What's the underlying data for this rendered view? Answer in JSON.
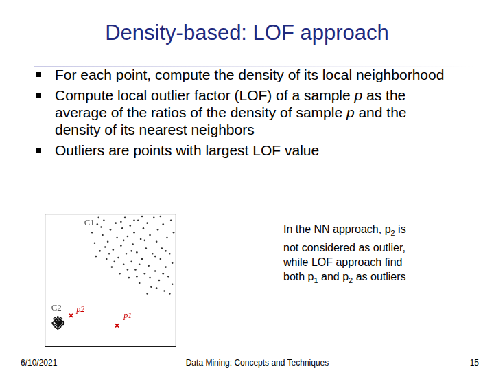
{
  "slide": {
    "title": "Density-based: LOF approach",
    "bullets": [
      [
        "For each point, compute the density of its local neighborhood"
      ],
      [
        "Compute local outlier factor (LOF) of a sample ",
        {
          "italic": "p"
        },
        " as the average of the ratios of the density of sample ",
        {
          "italic": "p"
        },
        " and the density of its nearest neighbors"
      ],
      [
        "Outliers are points with largest LOF value"
      ]
    ],
    "note": [
      [
        "In the NN approach, p",
        {
          "sub": "2"
        },
        " is"
      ],
      [
        "not considered as outlier,"
      ],
      [
        "while LOF approach find"
      ],
      [
        "both p",
        {
          "sub": "1"
        },
        " and p",
        {
          "sub": "2"
        },
        " as outliers"
      ]
    ],
    "footer": {
      "date": "6/10/2021",
      "source": "Data Mining: Concepts and Techniques",
      "page": "15"
    }
  },
  "chart_data": {
    "type": "scatter",
    "xlim": [
      0,
      100
    ],
    "ylim": [
      0,
      100
    ],
    "tick_labels": false,
    "grid": false,
    "series": [
      {
        "color": "#333333",
        "marker": "circle",
        "values": [
          [
            36,
            86
          ],
          [
            38,
            78
          ],
          [
            40,
            92
          ],
          [
            42,
            72
          ],
          [
            44,
            84
          ],
          [
            45,
            95
          ],
          [
            47,
            66
          ],
          [
            48,
            79
          ],
          [
            50,
            88
          ],
          [
            51,
            60
          ],
          [
            52,
            73
          ],
          [
            54,
            93
          ],
          [
            55,
            82
          ],
          [
            56,
            67
          ],
          [
            57,
            55
          ],
          [
            58,
            76
          ],
          [
            59,
            89
          ],
          [
            60,
            62
          ],
          [
            61,
            97
          ],
          [
            62,
            70
          ],
          [
            63,
            83
          ],
          [
            64,
            52
          ],
          [
            65,
            91
          ],
          [
            66,
            64
          ],
          [
            67,
            77
          ],
          [
            68,
            86
          ],
          [
            69,
            58
          ],
          [
            70,
            71
          ],
          [
            71,
            95
          ],
          [
            72,
            48
          ],
          [
            73,
            81
          ],
          [
            74,
            66
          ],
          [
            75,
            89
          ],
          [
            76,
            55
          ],
          [
            77,
            74
          ],
          [
            78,
            93
          ],
          [
            79,
            61
          ],
          [
            80,
            84
          ],
          [
            81,
            45
          ],
          [
            82,
            70
          ],
          [
            83,
            97
          ],
          [
            84,
            57
          ],
          [
            85,
            79
          ],
          [
            86,
            88
          ],
          [
            87,
            50
          ],
          [
            88,
            66
          ],
          [
            89,
            74
          ],
          [
            90,
            92
          ],
          [
            91,
            42
          ],
          [
            92,
            60
          ],
          [
            93,
            82
          ],
          [
            94,
            53
          ],
          [
            95,
            70
          ],
          [
            96,
            95
          ],
          [
            97,
            47
          ],
          [
            97,
            63
          ],
          [
            98,
            86
          ],
          [
            39,
            68
          ],
          [
            43,
            90
          ],
          [
            46,
            75
          ],
          [
            53,
            64
          ],
          [
            58,
            94
          ],
          [
            63,
            58
          ],
          [
            68,
            95
          ],
          [
            72,
            62
          ],
          [
            76,
            80
          ],
          [
            80,
            52
          ],
          [
            84,
            68
          ],
          [
            88,
            98
          ],
          [
            92,
            72
          ],
          [
            95,
            40
          ],
          [
            85,
            44
          ],
          [
            78,
            40
          ],
          [
            70,
            53
          ],
          [
            60,
            80
          ],
          [
            49,
            70
          ],
          [
            41,
            97
          ],
          [
            66,
            72
          ],
          [
            74,
            98
          ],
          [
            90,
            55
          ]
        ]
      },
      {
        "color": "#111111",
        "marker": "circle",
        "values": [
          [
            6,
            18
          ],
          [
            7,
            16
          ],
          [
            7,
            19
          ],
          [
            7,
            21
          ],
          [
            8,
            15
          ],
          [
            8,
            17
          ],
          [
            8,
            19
          ],
          [
            8,
            20
          ],
          [
            8,
            22
          ],
          [
            9,
            14
          ],
          [
            9,
            16
          ],
          [
            9,
            18
          ],
          [
            9,
            19
          ],
          [
            9,
            21
          ],
          [
            10,
            15
          ],
          [
            10,
            16
          ],
          [
            10,
            17
          ],
          [
            10,
            18
          ],
          [
            10,
            19
          ],
          [
            10,
            20
          ],
          [
            10,
            22
          ],
          [
            11,
            14
          ],
          [
            11,
            16
          ],
          [
            11,
            17
          ],
          [
            11,
            18
          ],
          [
            11,
            19
          ],
          [
            11,
            21
          ],
          [
            12,
            15
          ],
          [
            12,
            17
          ],
          [
            12,
            18
          ],
          [
            12,
            20
          ],
          [
            12,
            22
          ],
          [
            13,
            16
          ],
          [
            13,
            18
          ],
          [
            13,
            19
          ],
          [
            13,
            21
          ],
          [
            14,
            17
          ],
          [
            14,
            19
          ],
          [
            9.5,
            17.5
          ],
          [
            10.5,
            18.5
          ],
          [
            11.5,
            16.5
          ],
          [
            8.5,
            18.5
          ],
          [
            12.5,
            19.5
          ],
          [
            10.5,
            15.5
          ],
          [
            9.5,
            20.5
          ],
          [
            11.5,
            20.5
          ],
          [
            6.5,
            17
          ],
          [
            14.5,
            18
          ],
          [
            10,
            13.5
          ],
          [
            10,
            22.5
          ]
        ]
      },
      {
        "color": "#cc0000",
        "marker": "crossRot",
        "values": [
          [
            55,
            16
          ],
          [
            20,
            23.5
          ]
        ]
      }
    ],
    "annotations": [
      {
        "text": "C1",
        "x": 30,
        "y": 93
      },
      {
        "text": "C2",
        "x": 5,
        "y": 29
      },
      {
        "text": "p2",
        "x": 24,
        "y": 28,
        "color": "#cc0000"
      },
      {
        "text": "p1",
        "x": 60,
        "y": 23,
        "color": "#cc0000"
      }
    ]
  }
}
